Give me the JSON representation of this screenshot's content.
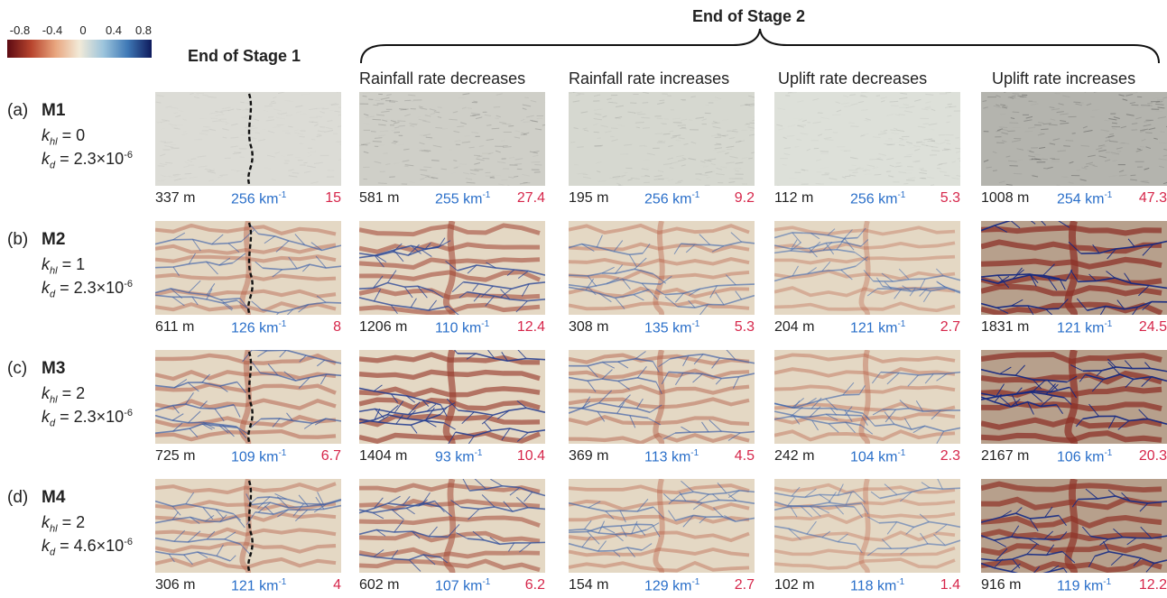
{
  "colorbar": {
    "ticks": [
      "-0.8",
      "-0.4",
      "0",
      "0.4",
      "0.8"
    ],
    "colors": [
      "#5c0a12",
      "#b8452e",
      "#e8a57e",
      "#f2ead8",
      "#9cc4dc",
      "#3f79b6",
      "#0e1a5c"
    ]
  },
  "titles": {
    "stage1": "End of Stage 1",
    "stage2": "End of Stage 2"
  },
  "columns": [
    "Rainfall rate decreases",
    "Rainfall rate increases",
    "Uplift rate decreases",
    "Uplift rate increases"
  ],
  "rows": [
    {
      "letter": "(a)",
      "model": "M1",
      "khl_label": "k",
      "khl_sub": "hl",
      "khl_value": " = 0",
      "kd_label": "k",
      "kd_sub": "d",
      "kd_value": " = 2.3×10",
      "kd_exp": "-6",
      "stats": [
        {
          "relief": "337 m",
          "density": "256 km",
          "ratio": "15"
        },
        {
          "relief": "581 m",
          "density": "255 km",
          "ratio": "27.4"
        },
        {
          "relief": "195 m",
          "density": "256 km",
          "ratio": "9.2"
        },
        {
          "relief": "112 m",
          "density": "256 km",
          "ratio": "5.3"
        },
        {
          "relief": "1008 m",
          "density": "254 km",
          "ratio": "47.3"
        }
      ]
    },
    {
      "letter": "(b)",
      "model": "M2",
      "khl_label": "k",
      "khl_sub": "hl",
      "khl_value": " = 1",
      "kd_label": "k",
      "kd_sub": "d",
      "kd_value": " = 2.3×10",
      "kd_exp": "-6",
      "stats": [
        {
          "relief": "611 m",
          "density": "126 km",
          "ratio": "8"
        },
        {
          "relief": "1206 m",
          "density": "110 km",
          "ratio": "12.4"
        },
        {
          "relief": "308 m",
          "density": "135 km",
          "ratio": "5.3"
        },
        {
          "relief": "204 m",
          "density": "121 km",
          "ratio": "2.7"
        },
        {
          "relief": "1831 m",
          "density": "121 km",
          "ratio": "24.5"
        }
      ]
    },
    {
      "letter": "(c)",
      "model": "M3",
      "khl_label": "k",
      "khl_sub": "hl",
      "khl_value": " = 2",
      "kd_label": "k",
      "kd_sub": "d",
      "kd_value": " = 2.3×10",
      "kd_exp": "-6",
      "stats": [
        {
          "relief": "725 m",
          "density": "109 km",
          "ratio": "6.7"
        },
        {
          "relief": "1404 m",
          "density": "93 km",
          "ratio": "10.4"
        },
        {
          "relief": "369 m",
          "density": "113 km",
          "ratio": "4.5"
        },
        {
          "relief": "242 m",
          "density": "104 km",
          "ratio": "2.3"
        },
        {
          "relief": "2167 m",
          "density": "106 km",
          "ratio": "20.3"
        }
      ]
    },
    {
      "letter": "(d)",
      "model": "M4",
      "khl_label": "k",
      "khl_sub": "hl",
      "khl_value": " = 2",
      "kd_label": "k",
      "kd_sub": "d",
      "kd_value": " = 4.6×10",
      "kd_exp": "-6",
      "stats": [
        {
          "relief": "306 m",
          "density": "121 km",
          "ratio": "4"
        },
        {
          "relief": "602 m",
          "density": "107 km",
          "ratio": "6.2"
        },
        {
          "relief": "154 m",
          "density": "129 km",
          "ratio": "2.7"
        },
        {
          "relief": "102 m",
          "density": "118 km",
          "ratio": "1.4"
        },
        {
          "relief": "916 m",
          "density": "119 km",
          "ratio": "12.2"
        }
      ]
    }
  ],
  "density_exp": "-1",
  "panel_styles": {
    "intensity": [
      [
        0.0,
        0.5,
        0.2,
        0.1,
        1.0
      ],
      [
        0.35,
        0.65,
        0.3,
        0.22,
        1.0
      ],
      [
        0.45,
        0.8,
        0.4,
        0.3,
        1.0
      ],
      [
        0.35,
        0.6,
        0.3,
        0.2,
        0.95
      ]
    ],
    "hillshade_m1": [
      "#dcdcd6",
      "#cfcfc8",
      "#d6d8d0",
      "#dde0d9",
      "#b4b4ae"
    ]
  }
}
